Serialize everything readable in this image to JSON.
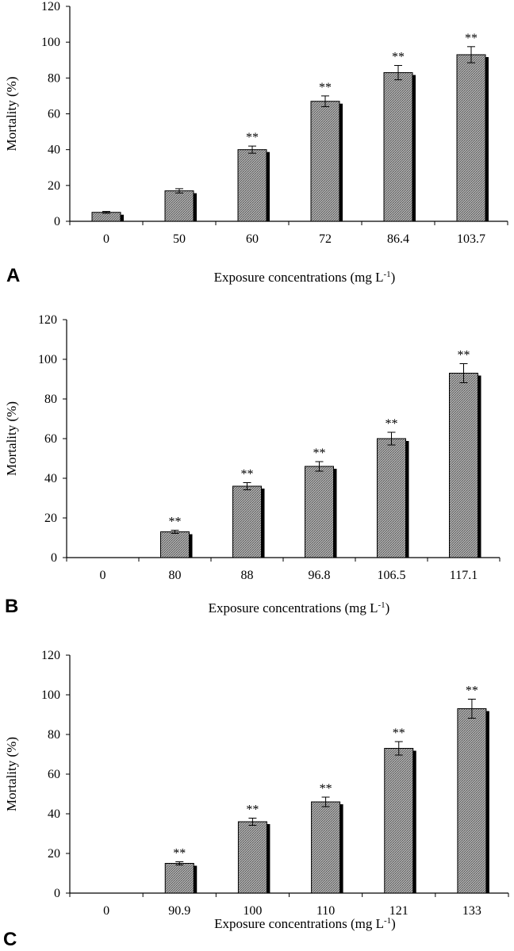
{
  "figure": {
    "colors": {
      "bar_fill": "#9a9a9a",
      "bar_shadow": "#000000",
      "axis": "#000000"
    }
  },
  "chart_data": [
    {
      "type": "bar",
      "panel_label": "A",
      "categories": [
        "0",
        "50",
        "60",
        "72",
        "86.4",
        "103.7"
      ],
      "values": [
        5,
        17,
        40,
        67,
        83,
        93
      ],
      "errors": [
        0.5,
        1.2,
        2.0,
        3.0,
        4.0,
        4.5
      ],
      "significance": [
        "",
        "",
        "**",
        "**",
        "**",
        "**"
      ],
      "xlabel": "Exposure concentrations (mg L",
      "xlabel_sup": "-1",
      "xlabel_end": ")",
      "ylabel": "Mortality (%)",
      "ylim": [
        0,
        120
      ],
      "yticks": [
        "0",
        "20",
        "40",
        "60",
        "80",
        "100",
        "120"
      ],
      "grid": false,
      "legend": "none"
    },
    {
      "type": "bar",
      "panel_label": "B",
      "categories": [
        "0",
        "80",
        "88",
        "96.8",
        "106.5",
        "117.1"
      ],
      "values": [
        0,
        13,
        36,
        46,
        60,
        93
      ],
      "errors": [
        0,
        0.8,
        1.8,
        2.4,
        3.2,
        4.8
      ],
      "significance": [
        "",
        "**",
        "**",
        "**",
        "**",
        "**"
      ],
      "xlabel": "Exposure concentrations (mg L",
      "xlabel_sup": "-1",
      "xlabel_end": ")",
      "ylabel": "Mortality (%)",
      "ylim": [
        0,
        120
      ],
      "yticks": [
        "0",
        "20",
        "40",
        "60",
        "80",
        "100",
        "120"
      ],
      "grid": false,
      "legend": "none"
    },
    {
      "type": "bar",
      "panel_label": "C",
      "categories": [
        "0",
        "90.9",
        "100",
        "110",
        "121",
        "133"
      ],
      "values": [
        0,
        15,
        36,
        46,
        73,
        93
      ],
      "errors": [
        0,
        0.8,
        1.8,
        2.4,
        3.4,
        4.8
      ],
      "significance": [
        "",
        "**",
        "**",
        "**",
        "**",
        "**"
      ],
      "xlabel": "Exposure concentrations (mg L",
      "xlabel_sup": "-1",
      "xlabel_end": ")",
      "ylabel": "Mortality (%)",
      "ylim": [
        0,
        120
      ],
      "yticks": [
        "0",
        "20",
        "40",
        "60",
        "80",
        "100",
        "120"
      ],
      "grid": false,
      "legend": "none"
    }
  ]
}
